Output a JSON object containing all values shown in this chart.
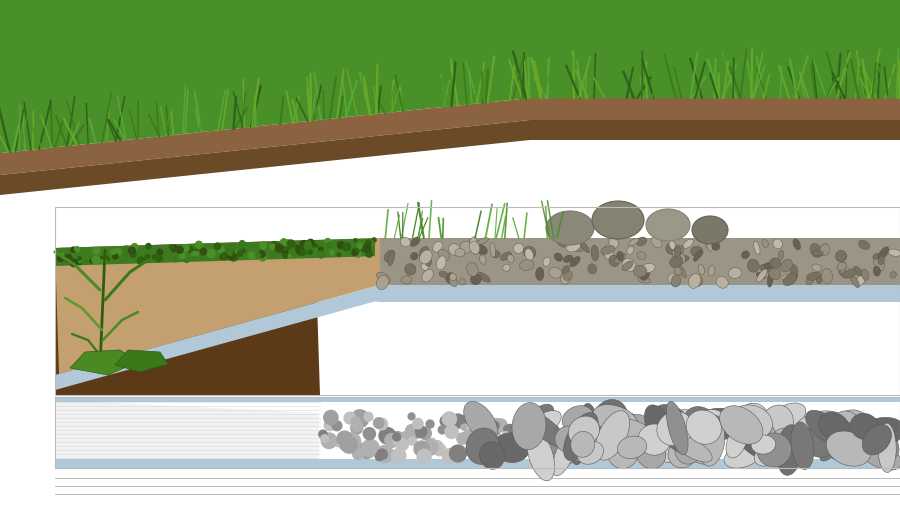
{
  "bg_color": "#ffffff",
  "fig_width": 9.0,
  "fig_height": 5.14,
  "grass_green_dark": "#3a7a18",
  "grass_green_mid": "#4a9028",
  "grass_green_light": "#5aaa38",
  "soil_brown": "#8B6340",
  "soil_dark_brown": "#6b4a28",
  "soil_very_dark": "#5c3a18",
  "sandy_color": "#c4a070",
  "moss_green": "#3d7a20",
  "gravel_color": "#9a9585",
  "boulder_color": "#8a8878",
  "blue_liner": "#b0c8d8",
  "fabric_white": "#f2f2f2",
  "rock_dark": "#707070",
  "rock_mid": "#909090",
  "rock_light": "#b8b8b8",
  "separator_color": "#bbbbbb"
}
